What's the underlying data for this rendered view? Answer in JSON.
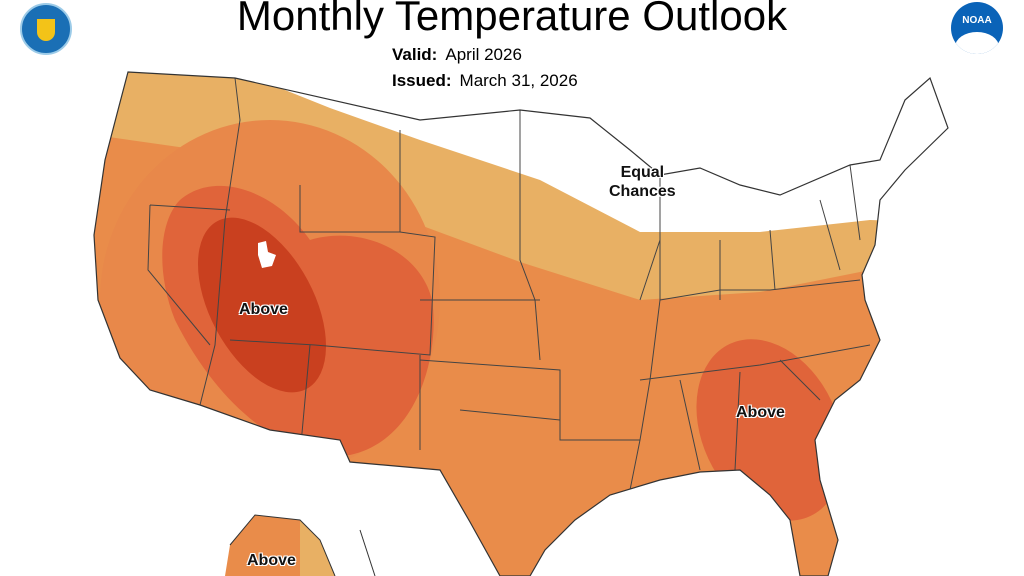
{
  "title": "Monthly Temperature Outlook",
  "valid_label": "Valid:",
  "valid_value": "April 2026",
  "issued_label": "Issued:",
  "issued_value": "March 31, 2026",
  "labels": {
    "equal_chances_line1": "Equal",
    "equal_chances_line2": "Chances",
    "above_west": "Above",
    "above_southeast": "Above",
    "above_alaska": "Above"
  },
  "logos": {
    "left": "Department of Commerce seal",
    "right": "NOAA"
  },
  "noaa_text": "NOAA",
  "colors": {
    "equal_chances": "#ffffff",
    "above_33_40": "#e8b064",
    "above_40_50": "#e98c4a",
    "above_50_60": "#e0643a",
    "above_60_70": "#c9401f"
  }
}
